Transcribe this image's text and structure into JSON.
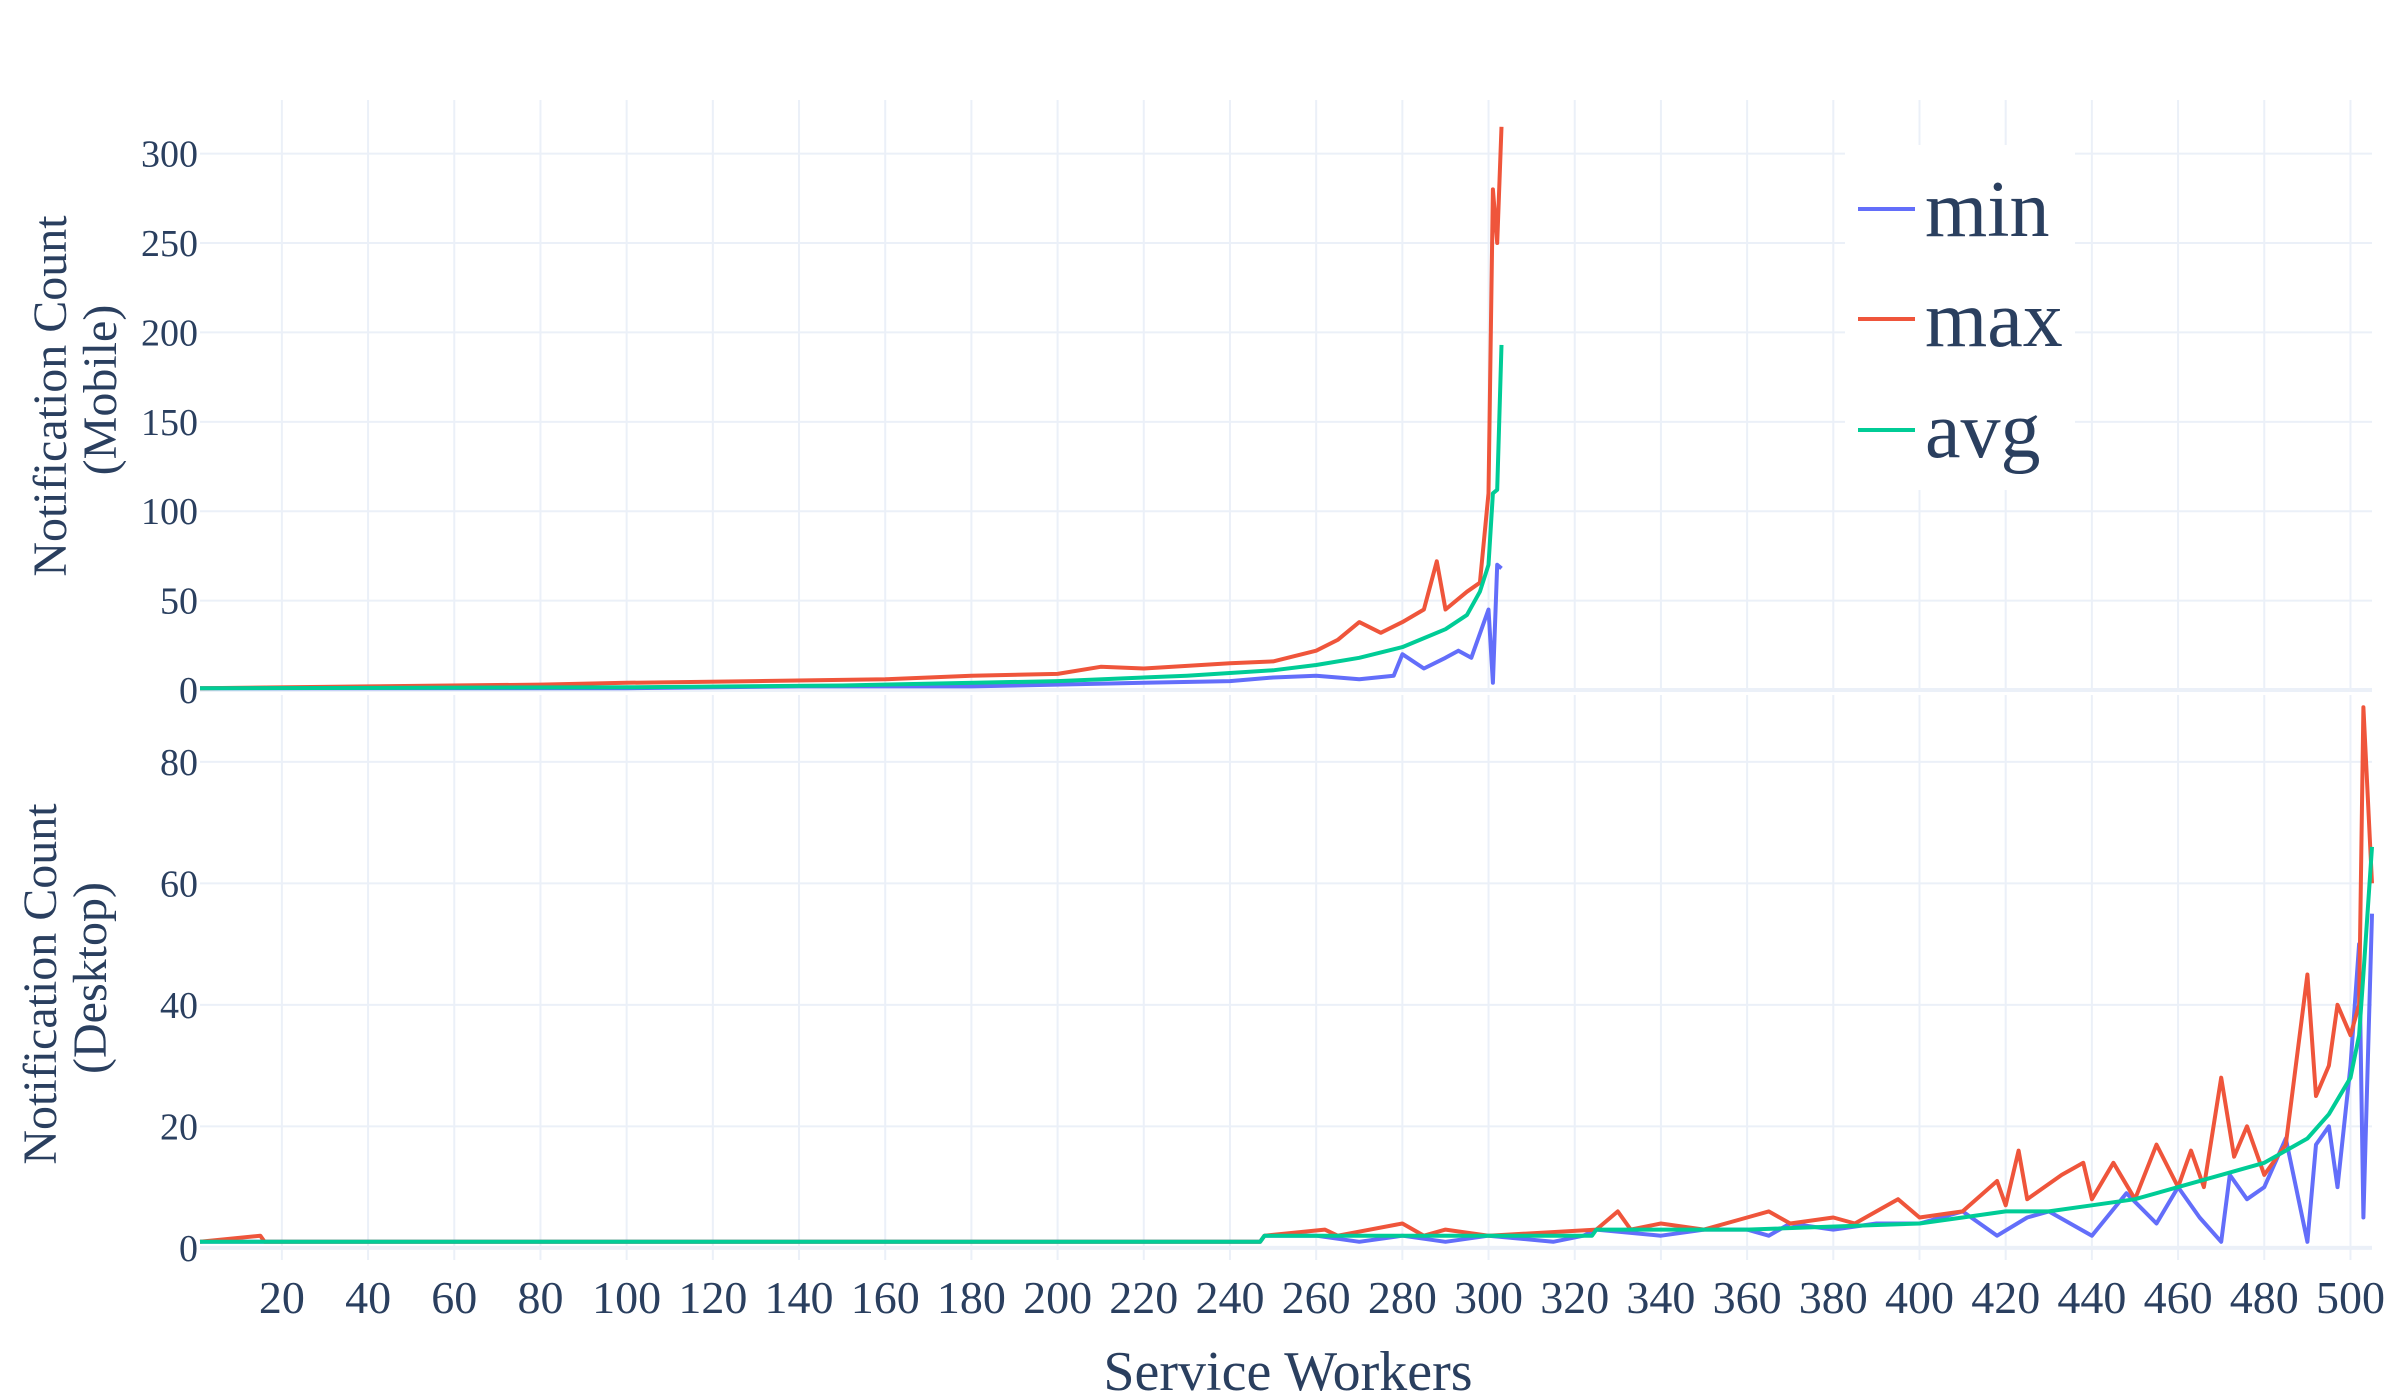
{
  "chart_data": {
    "type": "line",
    "xlabel": "Service Workers",
    "x_ticks": [
      20,
      40,
      60,
      80,
      100,
      120,
      140,
      160,
      180,
      200,
      220,
      240,
      260,
      280,
      300,
      320,
      340,
      360,
      380,
      400,
      420,
      440,
      460,
      480,
      500
    ],
    "xlim": [
      1,
      505
    ],
    "grid": true,
    "legend": {
      "position": "top-right",
      "entries": [
        "min",
        "max",
        "avg"
      ]
    },
    "colors": {
      "min": "#636efa",
      "max": "#ef553b",
      "avg": "#00cc96",
      "text": "#2a3f5f",
      "grid": "#ebf0f8"
    },
    "panels": [
      {
        "name": "mobile",
        "ylabel_lines": [
          "Notification Count",
          "(Mobile)"
        ],
        "ylim": [
          0,
          330
        ],
        "y_ticks": [
          0,
          50,
          100,
          150,
          200,
          250,
          300
        ],
        "x_end": 303,
        "series": [
          {
            "name": "min",
            "points": [
              [
                1,
                1
              ],
              [
                60,
                1
              ],
              [
                100,
                1
              ],
              [
                140,
                2
              ],
              [
                180,
                2
              ],
              [
                200,
                3
              ],
              [
                220,
                4
              ],
              [
                240,
                5
              ],
              [
                250,
                7
              ],
              [
                260,
                8
              ],
              [
                270,
                6
              ],
              [
                278,
                8
              ],
              [
                280,
                20
              ],
              [
                285,
                12
              ],
              [
                290,
                18
              ],
              [
                293,
                22
              ],
              [
                296,
                18
              ],
              [
                300,
                45
              ],
              [
                301,
                4
              ],
              [
                302,
                70
              ],
              [
                303,
                68
              ]
            ]
          },
          {
            "name": "max",
            "points": [
              [
                1,
                1
              ],
              [
                40,
                2
              ],
              [
                80,
                3
              ],
              [
                100,
                4
              ],
              [
                130,
                5
              ],
              [
                160,
                6
              ],
              [
                180,
                8
              ],
              [
                200,
                9
              ],
              [
                210,
                13
              ],
              [
                220,
                12
              ],
              [
                240,
                15
              ],
              [
                250,
                16
              ],
              [
                260,
                22
              ],
              [
                265,
                28
              ],
              [
                270,
                38
              ],
              [
                275,
                32
              ],
              [
                280,
                38
              ],
              [
                285,
                45
              ],
              [
                288,
                72
              ],
              [
                290,
                45
              ],
              [
                295,
                55
              ],
              [
                298,
                60
              ],
              [
                300,
                110
              ],
              [
                301,
                280
              ],
              [
                302,
                250
              ],
              [
                303,
                315
              ]
            ]
          },
          {
            "name": "avg",
            "points": [
              [
                1,
                1
              ],
              [
                100,
                1.5
              ],
              [
                150,
                2.5
              ],
              [
                200,
                5
              ],
              [
                230,
                8
              ],
              [
                250,
                11
              ],
              [
                260,
                14
              ],
              [
                270,
                18
              ],
              [
                280,
                24
              ],
              [
                290,
                34
              ],
              [
                295,
                42
              ],
              [
                298,
                55
              ],
              [
                300,
                70
              ],
              [
                301,
                110
              ],
              [
                302,
                112
              ],
              [
                303,
                193
              ]
            ]
          }
        ]
      },
      {
        "name": "desktop",
        "ylabel_lines": [
          "Notification Count",
          "(Desktop)"
        ],
        "ylim": [
          -2,
          91
        ],
        "y_ticks": [
          0,
          20,
          40,
          60,
          80
        ],
        "x_end": 505,
        "series": [
          {
            "name": "min",
            "points": [
              [
                1,
                1
              ],
              [
                247,
                1
              ],
              [
                248,
                2
              ],
              [
                260,
                2
              ],
              [
                270,
                1
              ],
              [
                280,
                2
              ],
              [
                290,
                1
              ],
              [
                300,
                2
              ],
              [
                315,
                1
              ],
              [
                322,
                2
              ],
              [
                325,
                3
              ],
              [
                340,
                2
              ],
              [
                350,
                3
              ],
              [
                360,
                3
              ],
              [
                365,
                2
              ],
              [
                370,
                4
              ],
              [
                380,
                3
              ],
              [
                390,
                4
              ],
              [
                400,
                4
              ],
              [
                405,
                5
              ],
              [
                410,
                6
              ],
              [
                418,
                2
              ],
              [
                425,
                5
              ],
              [
                430,
                6
              ],
              [
                440,
                2
              ],
              [
                448,
                9
              ],
              [
                455,
                4
              ],
              [
                460,
                10
              ],
              [
                465,
                5
              ],
              [
                470,
                1
              ],
              [
                472,
                12
              ],
              [
                476,
                8
              ],
              [
                480,
                10
              ],
              [
                485,
                18
              ],
              [
                490,
                1
              ],
              [
                492,
                17
              ],
              [
                495,
                20
              ],
              [
                497,
                10
              ],
              [
                500,
                30
              ],
              [
                502,
                50
              ],
              [
                503,
                5
              ],
              [
                505,
                55
              ]
            ]
          },
          {
            "name": "max",
            "points": [
              [
                1,
                1
              ],
              [
                15,
                2
              ],
              [
                16,
                1
              ],
              [
                247,
                1
              ],
              [
                248,
                2
              ],
              [
                262,
                3
              ],
              [
                265,
                2
              ],
              [
                280,
                4
              ],
              [
                285,
                2
              ],
              [
                290,
                3
              ],
              [
                300,
                2
              ],
              [
                325,
                3
              ],
              [
                330,
                6
              ],
              [
                333,
                3
              ],
              [
                340,
                4
              ],
              [
                350,
                3
              ],
              [
                360,
                5
              ],
              [
                365,
                6
              ],
              [
                370,
                4
              ],
              [
                380,
                5
              ],
              [
                385,
                4
              ],
              [
                390,
                6
              ],
              [
                395,
                8
              ],
              [
                400,
                5
              ],
              [
                410,
                6
              ],
              [
                418,
                11
              ],
              [
                420,
                7
              ],
              [
                423,
                16
              ],
              [
                425,
                8
              ],
              [
                433,
                12
              ],
              [
                438,
                14
              ],
              [
                440,
                8
              ],
              [
                445,
                14
              ],
              [
                450,
                8
              ],
              [
                455,
                17
              ],
              [
                460,
                10
              ],
              [
                463,
                16
              ],
              [
                466,
                10
              ],
              [
                470,
                28
              ],
              [
                473,
                15
              ],
              [
                476,
                20
              ],
              [
                480,
                12
              ],
              [
                485,
                17
              ],
              [
                490,
                45
              ],
              [
                492,
                25
              ],
              [
                495,
                30
              ],
              [
                497,
                40
              ],
              [
                500,
                35
              ],
              [
                502,
                40
              ],
              [
                503,
                89
              ],
              [
                505,
                60
              ]
            ]
          },
          {
            "name": "avg",
            "points": [
              [
                1,
                1
              ],
              [
                247,
                1
              ],
              [
                248,
                2
              ],
              [
                300,
                2
              ],
              [
                324,
                2
              ],
              [
                325,
                3
              ],
              [
                360,
                3
              ],
              [
                400,
                4
              ],
              [
                410,
                5
              ],
              [
                420,
                6
              ],
              [
                430,
                6
              ],
              [
                440,
                7
              ],
              [
                450,
                8
              ],
              [
                460,
                10
              ],
              [
                470,
                12
              ],
              [
                480,
                14
              ],
              [
                490,
                18
              ],
              [
                495,
                22
              ],
              [
                500,
                28
              ],
              [
                502,
                35
              ],
              [
                503,
                45
              ],
              [
                505,
                66
              ]
            ]
          }
        ]
      }
    ]
  }
}
